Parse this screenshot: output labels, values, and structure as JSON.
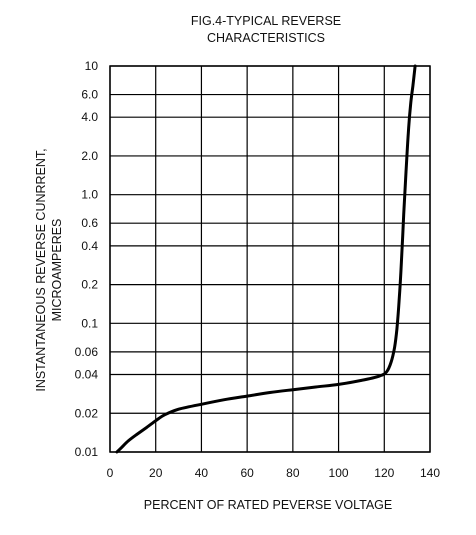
{
  "chart_data": {
    "type": "line",
    "title_lines": [
      "FIG.4-TYPICAL REVERSE",
      "CHARACTERISTICS"
    ],
    "xlabel": "PERCENT OF RATED PEVERSE VOLTAGE",
    "ylabel_lines": [
      "INSTANTANEOUS REVERSE CUNRRENT,",
      "MICROAMPERES"
    ],
    "x_scale": "linear",
    "y_scale": "log",
    "xlim": [
      0,
      140
    ],
    "ylim": [
      0.01,
      10
    ],
    "x_ticks": [
      0,
      20,
      40,
      60,
      80,
      100,
      120,
      140
    ],
    "x_tick_labels": [
      "0",
      "20",
      "40",
      "60",
      "80",
      "100",
      "120",
      "140"
    ],
    "y_ticks": [
      0.01,
      0.02,
      0.04,
      0.06,
      0.1,
      0.2,
      0.4,
      0.6,
      1.0,
      2.0,
      4.0,
      6.0,
      10
    ],
    "y_tick_labels": [
      "0.01",
      "0.02",
      "0.04",
      "0.06",
      "0.1",
      "0.2",
      "0.4",
      "0.6",
      "1.0",
      "2.0",
      "4.0",
      "6.0",
      "10"
    ],
    "grid": true,
    "line_color": "#000000",
    "series": [
      {
        "x": [
          3,
          5,
          8,
          12,
          16,
          20,
          24,
          30,
          40,
          50,
          60,
          70,
          80,
          90,
          100,
          110,
          118,
          121,
          123,
          124.5,
          125.5,
          126.5,
          127.5,
          128.5,
          129.5,
          130.5,
          131.5,
          132.5,
          133.5
        ],
        "y": [
          0.01,
          0.0108,
          0.0122,
          0.0138,
          0.0155,
          0.0175,
          0.0195,
          0.0215,
          0.0235,
          0.0255,
          0.0272,
          0.029,
          0.0305,
          0.032,
          0.0335,
          0.036,
          0.039,
          0.042,
          0.05,
          0.065,
          0.09,
          0.15,
          0.3,
          0.7,
          1.5,
          3.0,
          5.0,
          7.0,
          10
        ]
      }
    ]
  }
}
